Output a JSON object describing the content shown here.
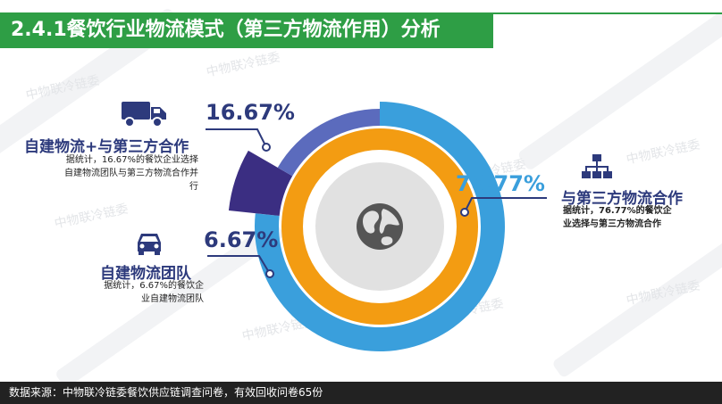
{
  "title": "2.4.1餐饮行业物流模式（第三方物流作用）分析",
  "colors": {
    "title_bg": "#2e9e45",
    "segment_third_party": "#3a9fdc",
    "segment_mixed": "#5b6bbd",
    "segment_own_team": "#3b2e82",
    "inner_ring": "#f39c12",
    "center_disc": "#e1e1e1",
    "label_dark": "#2d3a7c",
    "footer_bg": "#222222"
  },
  "watermark_text": "中物联冷链委",
  "chart_data": {
    "type": "pie",
    "variant": "radial-donut",
    "slices": [
      {
        "label": "与第三方物流合作",
        "value": 76.77,
        "display": "76.77%",
        "description": "据统计，76.77%的餐饮企业选择与第三方物流合作",
        "icon": "org-chart-icon",
        "color": "#3a9fdc"
      },
      {
        "label": "自建物流团队",
        "value": 6.67,
        "display": "6.67%",
        "description": "据统计，6.67%的餐饮企业自建物流团队",
        "icon": "car-icon",
        "color": "#3b2e82"
      },
      {
        "label": "自建物流+与第三方合作",
        "value": 16.67,
        "display": "16.67%",
        "description": "据统计，16.67%的餐饮企业选择自建物流团队与第三方物流合作并行",
        "icon": "truck-icon",
        "color": "#5b6bbd"
      }
    ],
    "center_icon": "globe-icon"
  },
  "footer": "数据来源：中物联冷链委餐饮供应链调查问卷，有效回收问卷65份"
}
